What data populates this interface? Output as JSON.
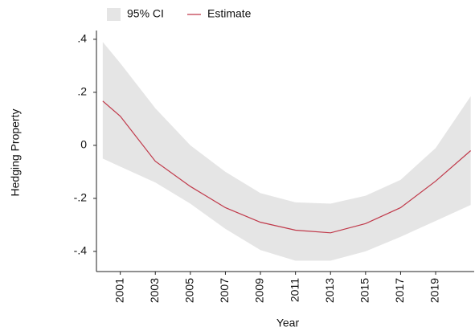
{
  "chart_data": {
    "type": "line",
    "xlabel": "Year",
    "ylabel": "Hedging Property",
    "x": [
      2000,
      2001,
      2003,
      2005,
      2007,
      2009,
      2011,
      2013,
      2015,
      2017,
      2019,
      2021
    ],
    "band": {
      "name": "95% CI",
      "color": "#e5e5e5",
      "upper": [
        0.39,
        0.31,
        0.14,
        0.0,
        -0.1,
        -0.18,
        -0.215,
        -0.22,
        -0.19,
        -0.13,
        -0.01,
        0.185
      ],
      "lower": [
        -0.05,
        -0.08,
        -0.14,
        -0.22,
        -0.315,
        -0.395,
        -0.435,
        -0.435,
        -0.4,
        -0.345,
        -0.285,
        -0.225
      ]
    },
    "series": [
      {
        "name": "Estimate",
        "color": "#c0394a",
        "values": [
          0.167,
          0.11,
          -0.06,
          -0.155,
          -0.235,
          -0.29,
          -0.32,
          -0.33,
          -0.295,
          -0.235,
          -0.135,
          -0.02
        ]
      }
    ],
    "xlim": [
      1999.64,
      2021.2
    ],
    "ylim": [
      -0.476,
      0.427
    ],
    "xticks": [
      2001,
      2003,
      2005,
      2007,
      2009,
      2011,
      2013,
      2015,
      2017,
      2019
    ],
    "yticks": [
      {
        "value": -0.4,
        "label": "-.4"
      },
      {
        "value": -0.2,
        "label": "-.2"
      },
      0,
      {
        "value": 0.2,
        "label": ".2"
      },
      {
        "value": 0.4,
        "label": ".4"
      }
    ]
  }
}
